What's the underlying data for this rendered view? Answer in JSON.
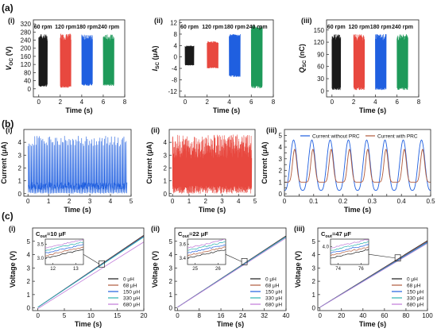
{
  "rows": [
    {
      "letter": "(a)"
    },
    {
      "letter": "(b)"
    },
    {
      "letter": "(c)"
    }
  ],
  "colors": {
    "black": "#1a1a1a",
    "red": "#e8483f",
    "blue": "#1f5fe0",
    "green": "#1e9a5a",
    "brown": "#b05a3c",
    "purple": "#c07ad8",
    "teal": "#2bb2b0"
  },
  "chart_data": [
    {
      "id": "a1",
      "roman": "(i)",
      "type": "line",
      "xlabel": "Time (s)",
      "ylabel": "V",
      "ylabel_sub": "OC",
      "ylabel_tail": " (V)",
      "xlim": [
        -0.5,
        8
      ],
      "ylim": [
        -40,
        340
      ],
      "xticks": [
        0,
        2,
        4,
        6,
        8
      ],
      "yticks": [
        0,
        40,
        80,
        120,
        160,
        200,
        240,
        280,
        320
      ],
      "series": [
        {
          "label": "60 rpm",
          "color": "black",
          "x": [
            0,
            0.8
          ],
          "min": 10,
          "max": 270
        },
        {
          "label": "120 rpm",
          "color": "red",
          "x": [
            2.0,
            3.0
          ],
          "min": 5,
          "max": 272
        },
        {
          "label": "180 rpm",
          "color": "blue",
          "x": [
            4.0,
            5.0
          ],
          "min": 15,
          "max": 268
        },
        {
          "label": "240 rpm",
          "color": "green",
          "x": [
            6.0,
            7.0
          ],
          "min": 15,
          "max": 268
        }
      ]
    },
    {
      "id": "a2",
      "roman": "(ii)",
      "type": "line",
      "xlabel": "Time (s)",
      "ylabel": "I",
      "ylabel_sub": "SC",
      "ylabel_tail": " (μA)",
      "xlim": [
        -0.5,
        8
      ],
      "ylim": [
        -14,
        13
      ],
      "xticks": [
        0,
        2,
        4,
        6,
        8
      ],
      "yticks": [
        -12,
        -8,
        -4,
        0,
        4,
        8,
        12
      ],
      "series": [
        {
          "label": "60 rpm",
          "color": "black",
          "x": [
            0,
            0.8
          ],
          "min": -3,
          "max": 4
        },
        {
          "label": "120 rpm",
          "color": "red",
          "x": [
            2.0,
            3.0
          ],
          "min": -4,
          "max": 5.5
        },
        {
          "label": "180 rpm",
          "color": "blue",
          "x": [
            4.0,
            5.0
          ],
          "min": -7,
          "max": 8
        },
        {
          "label": "240 rpm",
          "color": "green",
          "x": [
            6.0,
            7.0
          ],
          "min": -11,
          "max": 11
        }
      ]
    },
    {
      "id": "a3",
      "roman": "(iii)",
      "type": "line",
      "xlabel": "Time (s)",
      "ylabel": "Q",
      "ylabel_sub": "SC",
      "ylabel_tail": " (nC)",
      "xlim": [
        -0.5,
        8
      ],
      "ylim": [
        -15,
        175
      ],
      "xticks": [
        0,
        2,
        4,
        6,
        8
      ],
      "yticks": [
        0,
        30,
        60,
        90,
        120,
        150
      ],
      "series": [
        {
          "label": "60 rpm",
          "color": "black",
          "x": [
            0,
            0.8
          ],
          "min": 2,
          "max": 140
        },
        {
          "label": "120 rpm",
          "color": "red",
          "x": [
            2.0,
            3.0
          ],
          "min": 2,
          "max": 140
        },
        {
          "label": "180 rpm",
          "color": "blue",
          "x": [
            4.0,
            5.0
          ],
          "min": 2,
          "max": 140
        },
        {
          "label": "240 rpm",
          "color": "green",
          "x": [
            6.0,
            7.0
          ],
          "min": 2,
          "max": 140
        }
      ]
    },
    {
      "id": "b1",
      "roman": "(i)",
      "type": "line",
      "xlabel": "Time (s)",
      "ylabel": "Current (μA)",
      "xlim": [
        -0.2,
        5
      ],
      "ylim": [
        -0.2,
        5
      ],
      "xticks": [
        0,
        1,
        2,
        3,
        4,
        5
      ],
      "yticks": [
        0,
        1,
        2,
        3,
        4
      ],
      "series": [
        {
          "color": "blue",
          "x": [
            0,
            4.8
          ],
          "min": 0,
          "max": 4.5
        }
      ]
    },
    {
      "id": "b2",
      "roman": "(ii)",
      "type": "line",
      "xlabel": "Time (s)",
      "ylabel": "Current (μA)",
      "xlim": [
        -0.2,
        5
      ],
      "ylim": [
        -0.2,
        5
      ],
      "xticks": [
        0,
        1,
        2,
        3,
        4,
        5
      ],
      "yticks": [
        0,
        1,
        2,
        3,
        4
      ],
      "series": [
        {
          "color": "red",
          "x": [
            0,
            4.8
          ],
          "min": 0,
          "max": 4.6
        }
      ]
    },
    {
      "id": "b3",
      "roman": "(iii)",
      "type": "line",
      "xlabel": "Time (s)",
      "ylabel": "Current (μA)",
      "xlim": [
        0,
        0.5
      ],
      "ylim": [
        -0.2,
        5.5
      ],
      "xticks": [
        0,
        0.05,
        0.1,
        0.15,
        0.2,
        0.25,
        0.3,
        0.35,
        0.4,
        0.45,
        0.5
      ],
      "xticklabels": [
        "0",
        "",
        "0.1",
        "",
        "0.2",
        "",
        "0.3",
        "",
        "0.4",
        "",
        "0.5"
      ],
      "yticks": [
        0,
        0.5,
        1,
        1.5,
        2,
        2.5,
        3,
        3.5,
        4,
        4.5,
        5
      ],
      "yticklabels": [
        "0",
        "",
        "1",
        "",
        "2",
        "",
        "3",
        "",
        "4",
        "",
        "5"
      ],
      "legend": "top",
      "series": [
        {
          "name": "Current without PRC",
          "color": "blue",
          "period": 0.0625,
          "peak": 4.6,
          "base": 0.3
        },
        {
          "name": "Current with PRC",
          "color": "brown",
          "period": 0.0625,
          "peak": 3.8,
          "base": 1.0
        }
      ]
    },
    {
      "id": "c1",
      "roman": "(i)",
      "type": "line",
      "xlabel": "Time (s)",
      "ylabel": "Voltage (V)",
      "xlim": [
        -1,
        20
      ],
      "ylim": [
        -0.2,
        6
      ],
      "xticks": [
        0,
        5,
        10,
        15,
        20
      ],
      "yticks": [
        0,
        1,
        2,
        3,
        4,
        5
      ],
      "cout": "=10 μF",
      "legend_labels": [
        "0 μH",
        "68 μH",
        "150 μH",
        "330 μH",
        "680 μH"
      ],
      "series_colors": [
        "black",
        "brown",
        "blue",
        "teal",
        "purple"
      ],
      "slopes": [
        0.27,
        0.268,
        0.266,
        0.264,
        0.25
      ],
      "offsets": [
        0.0,
        0.0,
        0.0,
        0.0,
        -0.1
      ],
      "inset": {
        "xticks": [
          "12",
          "13"
        ],
        "yticks": [
          "3.0",
          "3.5"
        ],
        "xlim": [
          12,
          13.2
        ],
        "ylim": [
          2.9,
          3.7
        ]
      }
    },
    {
      "id": "c2",
      "roman": "(ii)",
      "type": "line",
      "xlabel": "Time (s)",
      "ylabel": "Voltage (V)",
      "xlim": [
        -1,
        40
      ],
      "ylim": [
        -0.2,
        6
      ],
      "xticks": [
        0,
        8,
        16,
        24,
        32,
        40
      ],
      "yticks": [
        0,
        1,
        2,
        3,
        4,
        5
      ],
      "cout": "=22 μF",
      "legend_labels": [
        "0 μH",
        "68 μH",
        "150 μH",
        "330 μH",
        "680 μH"
      ],
      "series_colors": [
        "black",
        "brown",
        "blue",
        "teal",
        "purple"
      ],
      "slopes": [
        0.134,
        0.133,
        0.1325,
        0.132,
        0.13
      ],
      "offsets": [
        0,
        0,
        0,
        0,
        0
      ],
      "inset": {
        "xticks": [
          "25",
          "26"
        ],
        "yticks": [
          "3.4",
          "3.6"
        ],
        "xlim": [
          24.5,
          26.5
        ],
        "ylim": [
          3.3,
          3.65
        ]
      }
    },
    {
      "id": "c3",
      "roman": "(iii)",
      "type": "line",
      "xlabel": "Time (s)",
      "ylabel": "Voltage (V)",
      "xlim": [
        -2,
        100
      ],
      "ylim": [
        -0.2,
        6
      ],
      "xticks": [
        0,
        20,
        40,
        60,
        80,
        100
      ],
      "yticks": [
        0,
        1,
        2,
        3,
        4,
        5
      ],
      "cout": "=47 μF",
      "legend_labels": [
        "0 μH",
        "68 μH",
        "150 μH",
        "330 μH",
        "680 μH"
      ],
      "series_colors": [
        "black",
        "brown",
        "blue",
        "teal",
        "purple"
      ],
      "slopes": [
        0.05,
        0.0495,
        0.049,
        0.0485,
        0.048
      ],
      "offsets": [
        0,
        0,
        0,
        0,
        0
      ],
      "inset": {
        "xticks": [
          "74",
          "76"
        ],
        "yticks": [
          "4.0"
        ],
        "xlim": [
          72,
          77.5
        ],
        "ylim": [
          3.35,
          4.15
        ]
      }
    }
  ]
}
